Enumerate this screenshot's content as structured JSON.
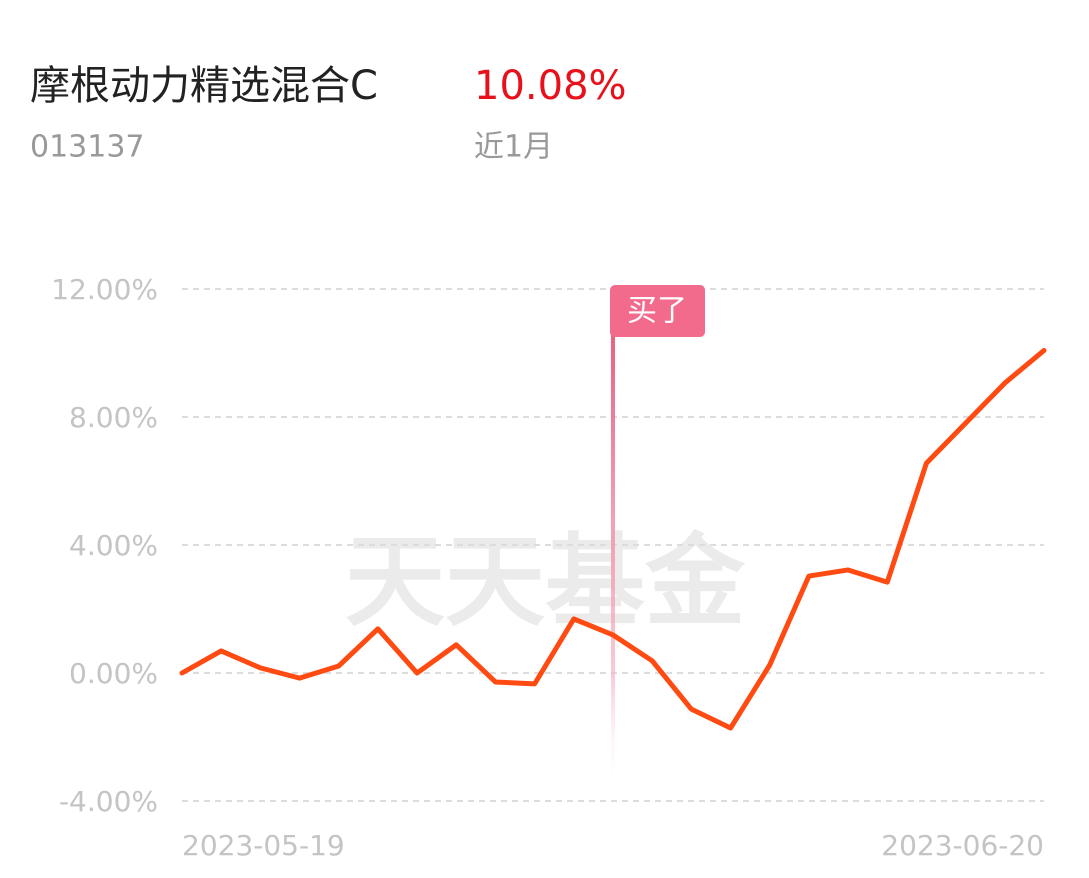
{
  "chart_data": {
    "type": "line",
    "title": "摩根动力精选混合C",
    "code": "013137",
    "return_text": "10.08%",
    "period": "近1月",
    "watermark": "天天基金",
    "categories": [
      "2023-05-19",
      null,
      null,
      null,
      null,
      null,
      null,
      null,
      null,
      null,
      null,
      null,
      null,
      null,
      null,
      null,
      null,
      null,
      null,
      null,
      null,
      null,
      "2023-06-20"
    ],
    "series": [
      {
        "color": "#ff4a12",
        "values": [
          0,
          0.69,
          0.16,
          -0.16,
          0.22,
          1.38,
          0.0,
          0.88,
          -0.28,
          -0.34,
          1.69,
          1.19,
          0.38,
          -1.13,
          -1.72,
          0.25,
          3.03,
          3.22,
          2.84,
          6.56,
          7.81,
          9.06,
          10.08
        ]
      }
    ],
    "ylim": [
      -4,
      12
    ],
    "yticks": [
      {
        "value": 12,
        "label": "12.00%"
      },
      {
        "value": 8,
        "label": "8.00%"
      },
      {
        "value": 4,
        "label": "4.00%"
      },
      {
        "value": 0,
        "label": "0.00%"
      },
      {
        "value": -4,
        "label": "-4.00%"
      }
    ],
    "grid": true,
    "annotation": {
      "text": "买了",
      "index": 11,
      "color": "#f26b8c"
    }
  }
}
